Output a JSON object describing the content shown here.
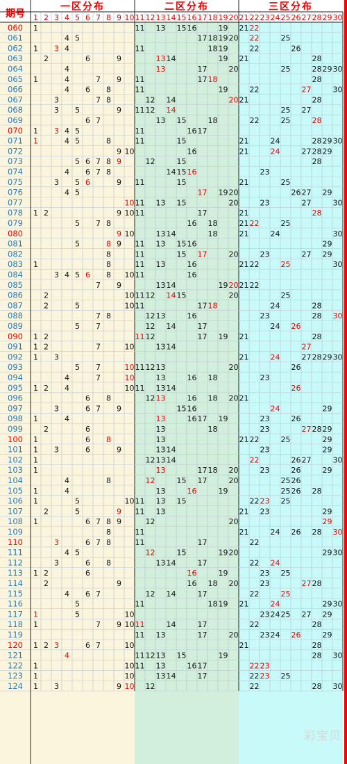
{
  "header": {
    "period_label": "期号",
    "zones": [
      {
        "label": "一区分布",
        "bg": "#faf5dc"
      },
      {
        "label": "二区分布",
        "bg": "#d2efdc"
      },
      {
        "label": "三区分布",
        "bg": "#c8fafa"
      }
    ],
    "columns": [
      "1",
      "2",
      "3",
      "4",
      "5",
      "6",
      "7",
      "8",
      "9",
      "10",
      "11",
      "12",
      "13",
      "14",
      "15",
      "16",
      "17",
      "18",
      "19",
      "20",
      "21",
      "22",
      "23",
      "24",
      "25",
      "26",
      "27",
      "28",
      "29",
      "30"
    ]
  },
  "colors": {
    "accent_red": "#e60000",
    "period_red": "#e60000",
    "period_blue": "#2a7ab8",
    "text": "#111111",
    "grid": "#b9c3d2",
    "header_bg": "#ffffff",
    "right_border": "#ff0000"
  },
  "rows": [
    {
      "period": "060",
      "red": true,
      "nums": [
        1,
        11,
        13,
        15,
        16,
        19,
        21,
        22
      ],
      "red_nums": [
        22
      ]
    },
    {
      "period": "061",
      "red": false,
      "nums": [
        4,
        5,
        17,
        18,
        19,
        20,
        22,
        25
      ],
      "red_nums": [
        22
      ]
    },
    {
      "period": "062",
      "red": false,
      "nums": [
        1,
        3,
        4,
        11,
        18,
        19,
        22,
        26
      ],
      "red_nums": [
        3
      ]
    },
    {
      "period": "063",
      "red": false,
      "nums": [
        2,
        6,
        9,
        13,
        14,
        19,
        21,
        28
      ],
      "red_nums": [
        13
      ]
    },
    {
      "period": "064",
      "red": false,
      "nums": [
        4,
        13,
        17,
        20,
        25,
        28,
        29,
        30
      ],
      "red_nums": [
        13
      ]
    },
    {
      "period": "065",
      "red": false,
      "nums": [
        1,
        4,
        7,
        9,
        11,
        17,
        18,
        28
      ],
      "red_nums": [
        18
      ]
    },
    {
      "period": "066",
      "red": false,
      "nums": [
        4,
        6,
        8,
        11,
        19,
        22,
        27,
        30
      ],
      "red_nums": [
        27
      ]
    },
    {
      "period": "067",
      "red": false,
      "nums": [
        3,
        7,
        8,
        12,
        14,
        20,
        21,
        28
      ],
      "red_nums": [
        20
      ]
    },
    {
      "period": "068",
      "red": false,
      "nums": [
        3,
        5,
        9,
        11,
        12,
        14,
        25,
        27
      ],
      "red_nums": [
        14
      ]
    },
    {
      "period": "069",
      "red": false,
      "nums": [
        6,
        7,
        13,
        15,
        18,
        22,
        25,
        28
      ],
      "red_nums": [
        28
      ]
    },
    {
      "period": "070",
      "red": true,
      "nums": [
        1,
        3,
        4,
        5,
        11,
        16,
        17
      ],
      "red_nums": [
        3
      ]
    },
    {
      "period": "071",
      "red": false,
      "nums": [
        1,
        4,
        5,
        8,
        11,
        15,
        21,
        24,
        28,
        29,
        30
      ],
      "red_nums": [
        1
      ]
    },
    {
      "period": "072",
      "red": false,
      "nums": [
        9,
        10,
        16,
        21,
        24,
        27,
        28,
        29
      ],
      "red_nums": [
        24
      ]
    },
    {
      "period": "073",
      "red": false,
      "nums": [
        5,
        6,
        7,
        8,
        9,
        12,
        15,
        28
      ],
      "red_nums": [
        9
      ]
    },
    {
      "period": "074",
      "red": false,
      "nums": [
        4,
        6,
        7,
        8,
        14,
        15,
        16,
        23
      ],
      "red_nums": [
        16
      ]
    },
    {
      "period": "075",
      "red": false,
      "nums": [
        3,
        5,
        6,
        9,
        11,
        15,
        21,
        25
      ],
      "red_nums": [
        6
      ]
    },
    {
      "period": "076",
      "red": false,
      "nums": [
        4,
        5,
        17,
        19,
        20,
        26,
        27,
        29
      ],
      "red_nums": [
        17
      ]
    },
    {
      "period": "077",
      "red": false,
      "nums": [
        10,
        11,
        13,
        15,
        20,
        23,
        27,
        30
      ],
      "red_nums": [
        10
      ]
    },
    {
      "period": "078",
      "red": false,
      "nums": [
        1,
        2,
        9,
        10,
        11,
        17,
        21,
        28
      ],
      "red_nums": [
        28
      ]
    },
    {
      "period": "079",
      "red": false,
      "nums": [
        5,
        7,
        8,
        16,
        18,
        21,
        22,
        25
      ],
      "red_nums": [
        22
      ]
    },
    {
      "period": "080",
      "red": true,
      "nums": [
        9,
        10,
        13,
        14,
        18,
        21,
        24,
        30
      ],
      "red_nums": [
        9
      ]
    },
    {
      "period": "081",
      "red": false,
      "nums": [
        5,
        8,
        9,
        11,
        13,
        15,
        16,
        29
      ],
      "red_nums": [
        8
      ]
    },
    {
      "period": "082",
      "red": false,
      "nums": [
        8,
        11,
        15,
        17,
        20,
        23,
        27,
        29
      ],
      "red_nums": [
        17
      ]
    },
    {
      "period": "083",
      "red": false,
      "nums": [
        1,
        8,
        11,
        13,
        16,
        21,
        22,
        25,
        30
      ],
      "red_nums": [
        25
      ]
    },
    {
      "period": "084",
      "red": false,
      "nums": [
        3,
        4,
        5,
        6,
        8,
        10,
        11,
        16
      ],
      "red_nums": [
        6
      ]
    },
    {
      "period": "085",
      "red": false,
      "nums": [
        7,
        9,
        13,
        14,
        19,
        20,
        21,
        22
      ],
      "red_nums": [
        20
      ]
    },
    {
      "period": "086",
      "red": false,
      "nums": [
        2,
        10,
        11,
        12,
        14,
        15,
        20,
        25
      ],
      "red_nums": [
        14
      ]
    },
    {
      "period": "087",
      "red": false,
      "nums": [
        2,
        5,
        10,
        11,
        17,
        18,
        24,
        28
      ],
      "red_nums": [
        18
      ]
    },
    {
      "period": "088",
      "red": false,
      "nums": [
        7,
        8,
        12,
        13,
        16,
        23,
        28,
        30
      ],
      "red_nums": [
        30
      ]
    },
    {
      "period": "089",
      "red": false,
      "nums": [
        5,
        7,
        12,
        14,
        17,
        24,
        26
      ],
      "red_nums": [
        26
      ]
    },
    {
      "period": "090",
      "red": true,
      "nums": [
        1,
        2,
        11,
        12,
        17,
        19,
        21,
        28
      ],
      "red_nums": [
        11
      ]
    },
    {
      "period": "091",
      "red": false,
      "nums": [
        1,
        2,
        7,
        10,
        13,
        14,
        27
      ],
      "red_nums": [
        27
      ]
    },
    {
      "period": "092",
      "red": false,
      "nums": [
        1,
        3,
        21,
        24,
        27,
        28,
        29,
        30
      ],
      "red_nums": [
        24
      ]
    },
    {
      "period": "093",
      "red": false,
      "nums": [
        5,
        7,
        10,
        11,
        12,
        13,
        20,
        26
      ],
      "red_nums": [
        10
      ]
    },
    {
      "period": "094",
      "red": false,
      "nums": [
        4,
        7,
        10,
        13,
        16,
        18,
        23
      ],
      "red_nums": [
        10
      ]
    },
    {
      "period": "095",
      "red": false,
      "nums": [
        1,
        2,
        4,
        10,
        11,
        13,
        14,
        26
      ],
      "red_nums": [
        26
      ]
    },
    {
      "period": "096",
      "red": false,
      "nums": [
        6,
        8,
        12,
        13,
        16,
        18,
        20,
        21
      ],
      "red_nums": [
        13
      ]
    },
    {
      "period": "097",
      "red": false,
      "nums": [
        3,
        6,
        7,
        9,
        15,
        16,
        24,
        29
      ],
      "red_nums": [
        24
      ]
    },
    {
      "period": "098",
      "red": false,
      "nums": [
        1,
        4,
        13,
        16,
        17,
        19,
        23,
        26
      ],
      "red_nums": [
        13
      ]
    },
    {
      "period": "099",
      "red": false,
      "nums": [
        2,
        6,
        13,
        18,
        23,
        27,
        28,
        29
      ],
      "red_nums": [
        27
      ]
    },
    {
      "period": "100",
      "red": true,
      "nums": [
        1,
        6,
        8,
        13,
        21,
        22,
        25,
        29
      ],
      "red_nums": [
        8
      ]
    },
    {
      "period": "101",
      "red": false,
      "nums": [
        1,
        3,
        6,
        9,
        13,
        14,
        23,
        29
      ],
      "red_nums": []
    },
    {
      "period": "102",
      "red": false,
      "nums": [
        1,
        12,
        13,
        14,
        22,
        26,
        27,
        30
      ],
      "red_nums": [
        22
      ]
    },
    {
      "period": "103",
      "red": false,
      "nums": [
        1,
        13,
        17,
        18,
        20,
        23,
        26,
        29
      ],
      "red_nums": [
        13
      ]
    },
    {
      "period": "104",
      "red": false,
      "nums": [
        4,
        8,
        12,
        15,
        17,
        20,
        25,
        26
      ],
      "red_nums": [
        12
      ]
    },
    {
      "period": "105",
      "red": false,
      "nums": [
        1,
        4,
        13,
        16,
        19,
        25,
        26,
        28
      ],
      "red_nums": [
        16
      ]
    },
    {
      "period": "106",
      "red": false,
      "nums": [
        1,
        5,
        10,
        11,
        13,
        15,
        22,
        23,
        25
      ],
      "red_nums": [
        23
      ]
    },
    {
      "period": "107",
      "red": false,
      "nums": [
        2,
        5,
        9,
        11,
        13,
        21,
        23,
        29
      ],
      "red_nums": [
        9
      ]
    },
    {
      "period": "108",
      "red": false,
      "nums": [
        1,
        6,
        7,
        8,
        9,
        12,
        20,
        29
      ],
      "red_nums": [
        29
      ]
    },
    {
      "period": "109",
      "red": false,
      "nums": [
        8,
        11,
        21,
        24,
        26,
        28,
        30
      ],
      "red_nums": [
        30
      ]
    },
    {
      "period": "110",
      "red": true,
      "nums": [
        3,
        6,
        7,
        8,
        11,
        17,
        22
      ],
      "red_nums": [
        3
      ]
    },
    {
      "period": "111",
      "red": false,
      "nums": [
        4,
        5,
        12,
        15,
        19,
        20,
        29,
        30
      ],
      "red_nums": [
        12
      ]
    },
    {
      "period": "112",
      "red": false,
      "nums": [
        3,
        6,
        8,
        13,
        14,
        17,
        22,
        24
      ],
      "red_nums": [
        24
      ]
    },
    {
      "period": "113",
      "red": false,
      "nums": [
        1,
        2,
        6,
        16,
        19,
        23,
        25
      ],
      "red_nums": [
        16
      ]
    },
    {
      "period": "114",
      "red": false,
      "nums": [
        2,
        9,
        16,
        18,
        20,
        23,
        27,
        28
      ],
      "red_nums": [
        27
      ]
    },
    {
      "period": "115",
      "red": false,
      "nums": [
        4,
        6,
        7,
        12,
        14,
        17,
        22,
        25
      ],
      "red_nums": [
        25
      ]
    },
    {
      "period": "116",
      "red": false,
      "nums": [
        5,
        11,
        18,
        19,
        21,
        24,
        29,
        30
      ],
      "red_nums": [
        24
      ]
    },
    {
      "period": "117",
      "red": false,
      "nums": [
        1,
        5,
        10,
        23,
        24,
        25,
        27,
        29
      ],
      "red_nums": [
        1
      ]
    },
    {
      "period": "118",
      "red": false,
      "nums": [
        1,
        7,
        9,
        10,
        11,
        14,
        17,
        22,
        28
      ],
      "red_nums": [
        11
      ]
    },
    {
      "period": "119",
      "red": false,
      "nums": [
        11,
        13,
        17,
        20,
        23,
        24,
        26,
        29
      ],
      "red_nums": [
        26
      ]
    },
    {
      "period": "120",
      "red": true,
      "nums": [
        1,
        2,
        3,
        6,
        7,
        10,
        21,
        28
      ],
      "red_nums": [
        3
      ]
    },
    {
      "period": "121",
      "red": false,
      "nums": [
        4,
        11,
        12,
        13,
        15,
        19,
        28,
        30
      ],
      "red_nums": [
        4
      ]
    },
    {
      "period": "122",
      "red": false,
      "nums": [
        1,
        10,
        11,
        13,
        16,
        17,
        22,
        23
      ],
      "red_nums": [
        22,
        23
      ]
    },
    {
      "period": "123",
      "red": false,
      "nums": [
        1,
        10,
        13,
        14,
        17,
        22,
        23,
        25
      ],
      "red_nums": [
        23
      ]
    },
    {
      "period": "124",
      "red": false,
      "nums": [
        1,
        3,
        9,
        10,
        12,
        22,
        28,
        30
      ],
      "red_nums": [
        10
      ]
    }
  ],
  "watermark": "彩宝贝"
}
